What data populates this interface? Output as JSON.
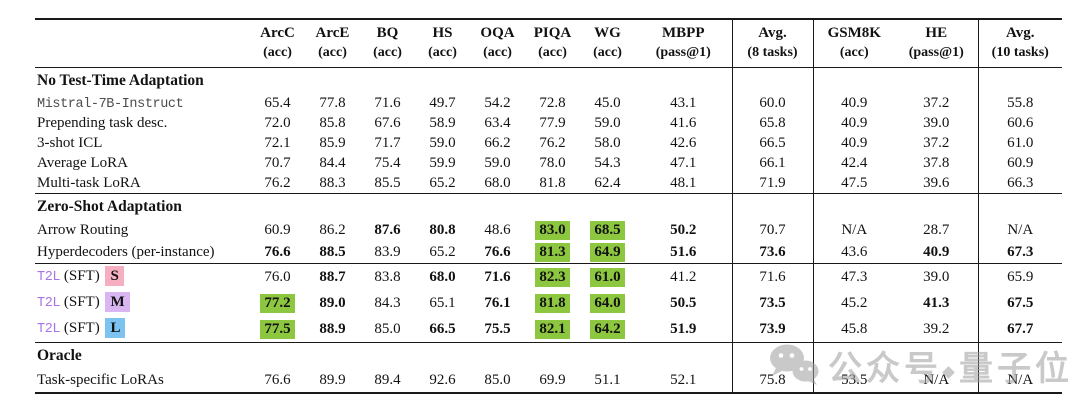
{
  "table": {
    "columns": [
      {
        "h": "ArcC",
        "s": "(acc)"
      },
      {
        "h": "ArcE",
        "s": "(acc)"
      },
      {
        "h": "BQ",
        "s": "(acc)"
      },
      {
        "h": "HS",
        "s": "(acc)"
      },
      {
        "h": "OQA",
        "s": "(acc)"
      },
      {
        "h": "PIQA",
        "s": "(acc)"
      },
      {
        "h": "WG",
        "s": "(acc)"
      },
      {
        "h": "MBPP",
        "s": "(pass@1)"
      },
      {
        "h": "Avg.",
        "s": "(8 tasks)",
        "vl": true
      },
      {
        "h": "GSM8K",
        "s": "(acc)",
        "vl": true
      },
      {
        "h": "HE",
        "s": "(pass@1)"
      },
      {
        "h": "Avg.",
        "s": "(10 tasks)",
        "vl": true
      }
    ],
    "t2l": {
      "prefix": "T2L",
      "mid": " (SFT) "
    },
    "sections": [
      {
        "title": "No Test-Time Adaptation",
        "rows": [
          {
            "label": "Mistral-7B-Instruct",
            "mono": true,
            "cells": [
              "65.4",
              "77.8",
              "71.6",
              "49.7",
              "54.2",
              "72.8",
              "45.0",
              "43.1",
              "60.0",
              "40.9",
              "37.2",
              "55.8"
            ]
          },
          {
            "label": "Prepending task desc.",
            "cells": [
              "72.0",
              "85.8",
              "67.6",
              "58.9",
              "63.4",
              "77.9",
              "59.0",
              "41.6",
              "65.8",
              "40.9",
              "39.0",
              "60.6"
            ]
          },
          {
            "label": "3-shot ICL",
            "cells": [
              "72.1",
              "85.9",
              "71.7",
              "59.0",
              "66.2",
              "76.2",
              "58.0",
              "42.6",
              "66.5",
              "40.9",
              "37.2",
              "61.0"
            ]
          },
          {
            "label": "Average LoRA",
            "cells": [
              "70.7",
              "84.4",
              "75.4",
              "59.9",
              "59.0",
              "78.0",
              "54.3",
              "47.1",
              "66.1",
              "42.4",
              "37.8",
              "60.9"
            ]
          },
          {
            "label": "Multi-task LoRA",
            "cells": [
              "76.2",
              "88.3",
              "85.5",
              "65.2",
              "68.0",
              "81.8",
              "62.4",
              "48.1",
              "71.9",
              "47.5",
              "39.6",
              "66.3"
            ]
          }
        ]
      },
      {
        "title": "Zero-Shot Adaptation",
        "rows": [
          {
            "label": "Arrow Routing",
            "cells": [
              "60.9",
              "86.2",
              {
                "t": "87.6",
                "b": true
              },
              {
                "t": "80.8",
                "b": true
              },
              "48.6",
              {
                "t": "83.0",
                "b": true,
                "g": true
              },
              {
                "t": "68.5",
                "b": true,
                "g": true
              },
              {
                "t": "50.2",
                "b": true
              },
              "70.7",
              "N/A",
              "28.7",
              "N/A"
            ]
          },
          {
            "label": "Hyperdecoders (per-instance)",
            "cells": [
              {
                "t": "76.6",
                "b": true
              },
              {
                "t": "88.5",
                "b": true
              },
              "83.9",
              "65.2",
              {
                "t": "76.6",
                "b": true
              },
              {
                "t": "81.3",
                "b": true,
                "g": true
              },
              {
                "t": "64.9",
                "b": true,
                "g": true
              },
              {
                "t": "51.6",
                "b": true
              },
              {
                "t": "73.6",
                "b": true
              },
              "43.6",
              {
                "t": "40.9",
                "b": true
              },
              {
                "t": "67.3",
                "b": true
              }
            ]
          }
        ]
      },
      {
        "title": null,
        "rows": [
          {
            "t2l": true,
            "size": "S",
            "chip": "pink",
            "cells": [
              "76.0",
              {
                "t": "88.7",
                "b": true
              },
              "83.8",
              {
                "t": "68.0",
                "b": true
              },
              {
                "t": "71.6",
                "b": true
              },
              {
                "t": "82.3",
                "b": true,
                "g": true
              },
              {
                "t": "61.0",
                "b": true,
                "g": true
              },
              "41.2",
              "71.6",
              "47.3",
              "39.0",
              "65.9"
            ]
          },
          {
            "t2l": true,
            "size": "M",
            "chip": "purple",
            "cells": [
              {
                "t": "77.2",
                "b": true,
                "g": true
              },
              {
                "t": "89.0",
                "b": true
              },
              "84.3",
              "65.1",
              {
                "t": "76.1",
                "b": true
              },
              {
                "t": "81.8",
                "b": true,
                "g": true
              },
              {
                "t": "64.0",
                "b": true,
                "g": true
              },
              {
                "t": "50.5",
                "b": true
              },
              {
                "t": "73.5",
                "b": true
              },
              "45.2",
              {
                "t": "41.3",
                "b": true
              },
              {
                "t": "67.5",
                "b": true
              }
            ]
          },
          {
            "t2l": true,
            "size": "L",
            "chip": "blue",
            "cells": [
              {
                "t": "77.5",
                "b": true,
                "g": true
              },
              {
                "t": "88.9",
                "b": true
              },
              "85.0",
              {
                "t": "66.5",
                "b": true
              },
              {
                "t": "75.5",
                "b": true
              },
              {
                "t": "82.1",
                "b": true,
                "g": true
              },
              {
                "t": "64.2",
                "b": true,
                "g": true
              },
              {
                "t": "51.9",
                "b": true
              },
              {
                "t": "73.9",
                "b": true
              },
              "45.8",
              "39.2",
              {
                "t": "67.7",
                "b": true
              }
            ]
          }
        ]
      },
      {
        "title": "Oracle",
        "rows": [
          {
            "label": "Task-specific LoRAs",
            "cells": [
              "76.6",
              "89.9",
              "89.4",
              "92.6",
              "85.0",
              "69.9",
              "51.1",
              "52.1",
              "75.8",
              "53.5",
              "N/A",
              "N/A"
            ]
          }
        ]
      }
    ]
  },
  "watermark": {
    "label1": "公众号",
    "label2": "量子位",
    "icon": "wechat-icon"
  },
  "colors": {
    "highlight_green": "#8dc63f",
    "chip_pink": "#f6aec1",
    "chip_purple": "#d9b6f2",
    "chip_blue": "#7cc3f2",
    "t2l_purple": "#a873e6",
    "rule_black": "#1a1a1a",
    "watermark_gray": "#9e9e9e"
  }
}
